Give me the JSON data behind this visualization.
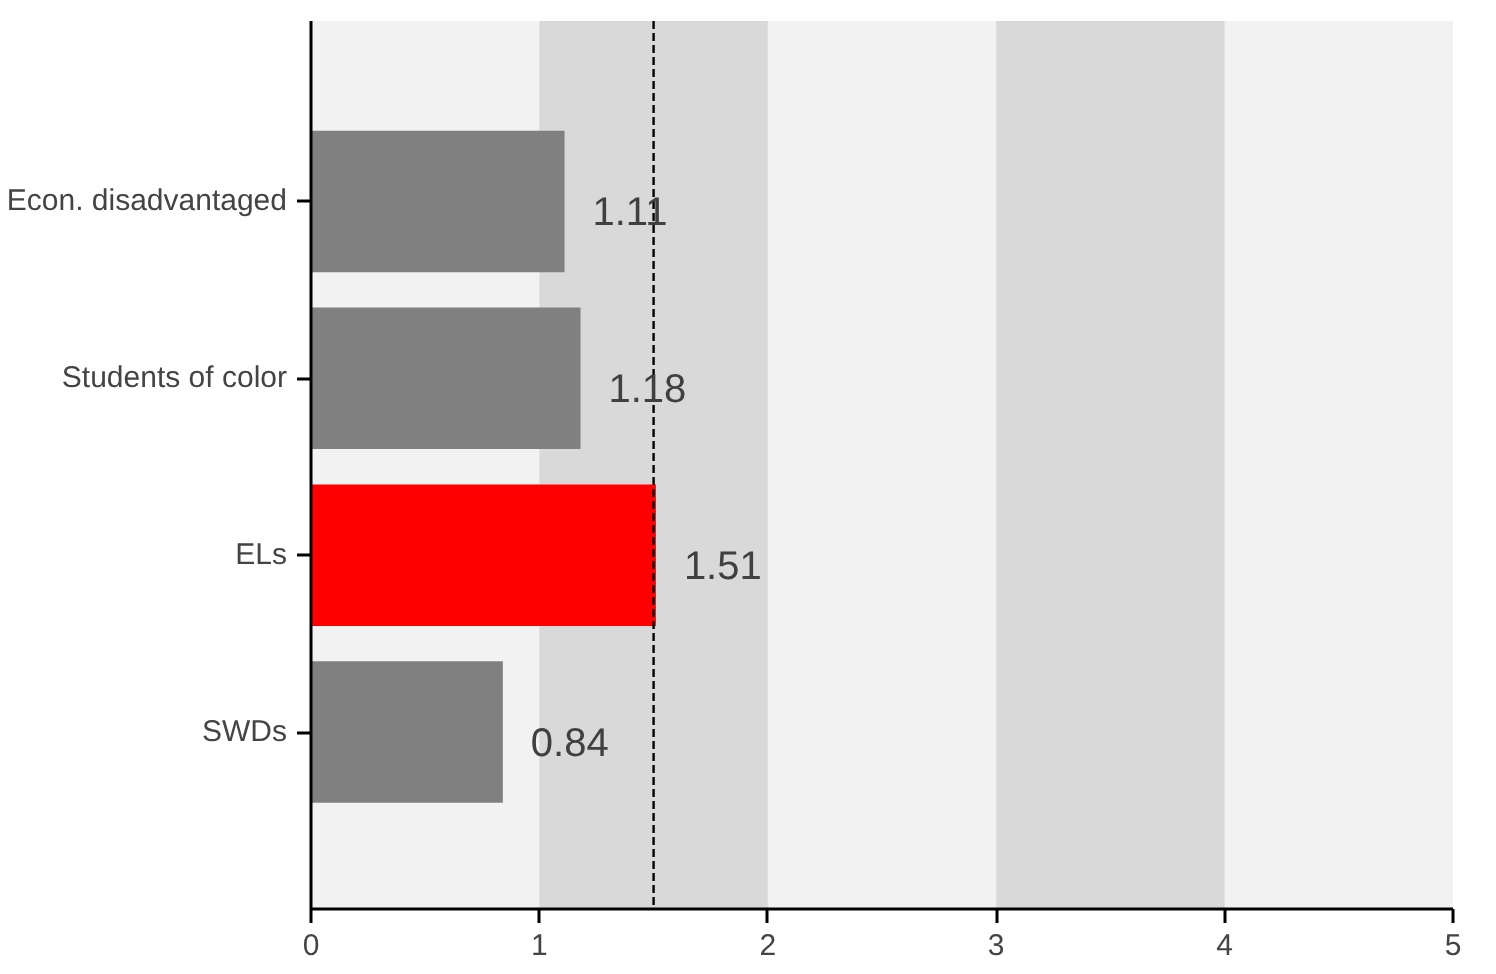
{
  "chart_data": {
    "type": "bar",
    "orientation": "horizontal",
    "categories": [
      "Econ. disadvantaged",
      "Students of color",
      "ELs",
      "SWDs"
    ],
    "values": [
      1.11,
      1.18,
      1.51,
      0.84
    ],
    "colors": [
      "#808080",
      "#808080",
      "#ff0000",
      "#808080"
    ],
    "xlim": [
      0,
      5
    ],
    "xticks": [
      0,
      1,
      2,
      3,
      4,
      5
    ],
    "data_labels": true,
    "grid": false,
    "bands": [
      {
        "axis": "x",
        "from": 1,
        "to": 2,
        "color": "#d9d9d9"
      },
      {
        "axis": "x",
        "from": 3,
        "to": 4,
        "color": "#d9d9d9"
      }
    ],
    "ref_lines": [
      {
        "axis": "x",
        "value": 1.5,
        "color": "#000000",
        "line_style": "dashed"
      }
    ]
  }
}
